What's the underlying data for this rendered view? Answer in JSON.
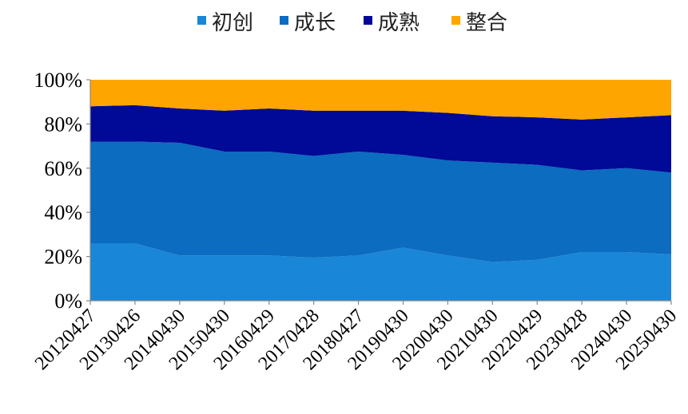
{
  "chart_data": {
    "type": "area",
    "stacked": true,
    "normalized": true,
    "x": [
      "20120427",
      "20130426",
      "20140430",
      "20150430",
      "20160429",
      "20170428",
      "20180427",
      "20190430",
      "20200430",
      "20210430",
      "20220429",
      "20230428",
      "20240430",
      "20250430"
    ],
    "series": [
      {
        "name": "初创",
        "color": "#1a86d8",
        "values": [
          26,
          26,
          20.5,
          20.5,
          20.5,
          19.5,
          20.5,
          24,
          20.5,
          17.5,
          18.5,
          22,
          22,
          21
        ]
      },
      {
        "name": "成长",
        "color": "#0b6cc0",
        "values": [
          46,
          46,
          51,
          47,
          47,
          46,
          47,
          42,
          43,
          45,
          43,
          37,
          38,
          37
        ]
      },
      {
        "name": "成熟",
        "color": "#000a96",
        "values": [
          16,
          16.5,
          15.5,
          18.5,
          19.5,
          20.5,
          18.5,
          20,
          21.5,
          21,
          21.5,
          23,
          23,
          26
        ]
      },
      {
        "name": "整合",
        "color": "#ffa500",
        "values": [
          12,
          11.5,
          13,
          14,
          13,
          14,
          14,
          14,
          15,
          16.5,
          17,
          18,
          17,
          16
        ]
      }
    ],
    "y_tick_labels": [
      "0%",
      "20%",
      "40%",
      "60%",
      "80%",
      "100%"
    ],
    "ylim": [
      0,
      100
    ],
    "legend_position": "top-center",
    "grid": false
  }
}
